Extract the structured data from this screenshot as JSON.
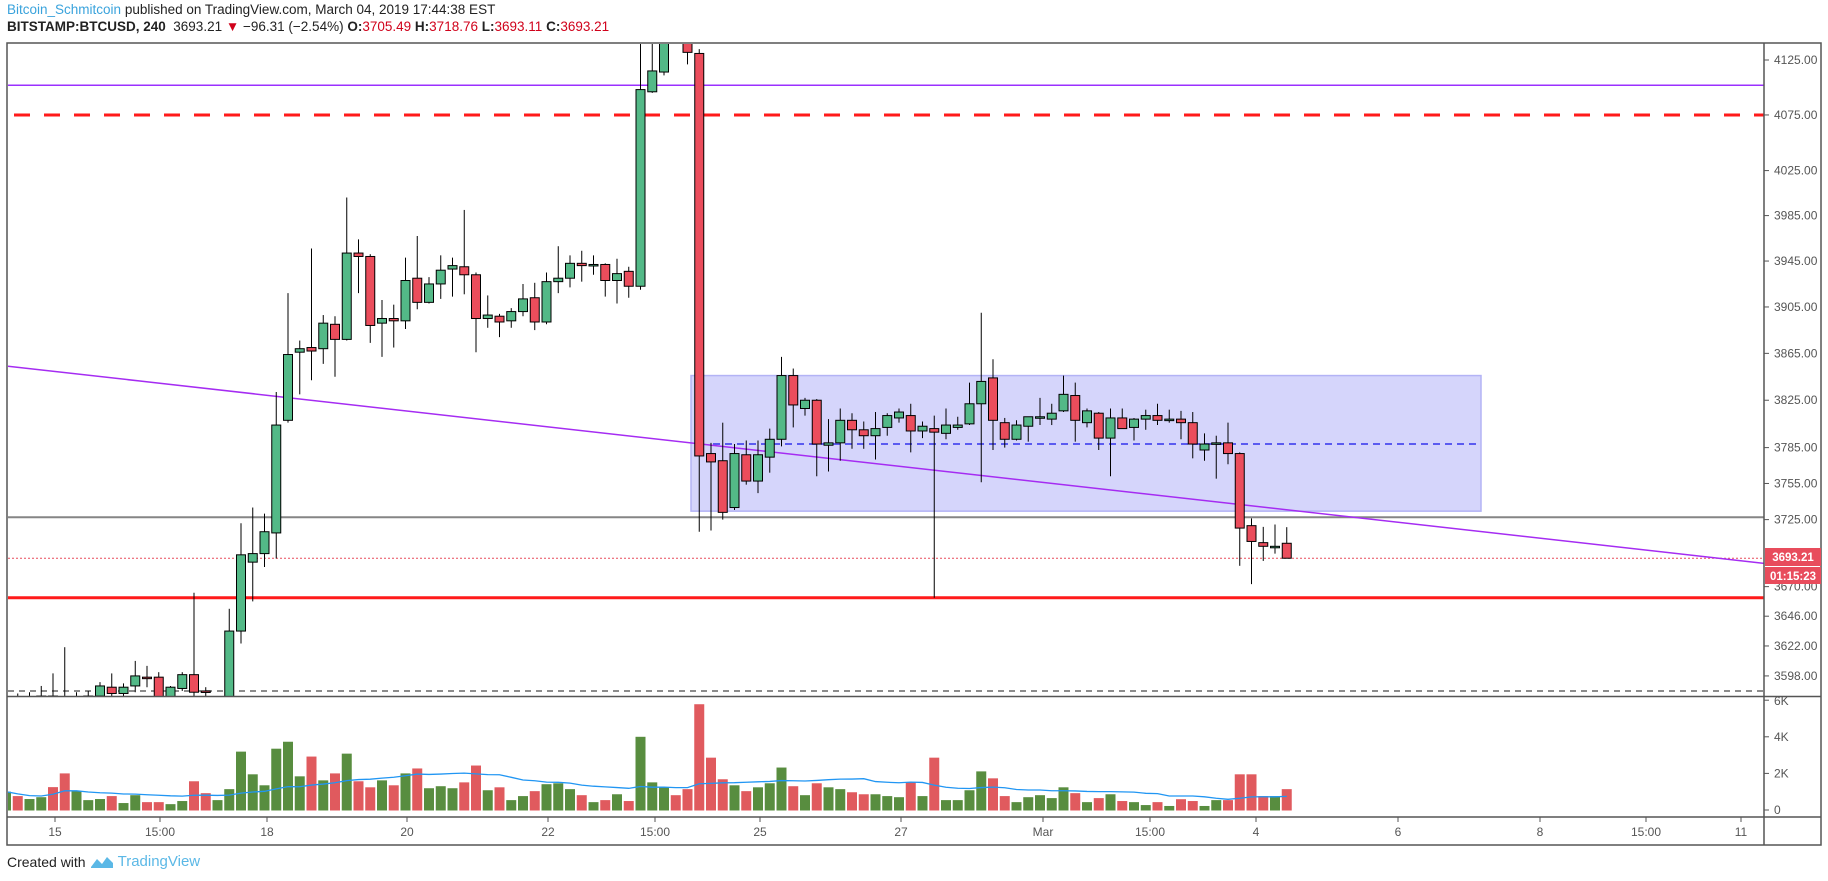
{
  "header": {
    "author": "Bitcoin_Schmitcoin",
    "published_text": "published on TradingView.com, March 04, 2019 17:44:38 EST",
    "symbol": "BITSTAMP:BTCUSD, 240",
    "last": "3693.21",
    "change_icon": "triangle-down-icon",
    "change_glyph": "▼",
    "change": "−96.31 (−2.54%)",
    "o_label": "O:",
    "o": "3705.49",
    "h_label": "H:",
    "h": "3718.76",
    "l_label": "L:",
    "l": "3693.11",
    "c_label": "C:",
    "c": "3693.21"
  },
  "price_badge": {
    "price": "3693.21",
    "countdown": "01:15:23"
  },
  "footer": {
    "created_with": "Created with",
    "brand": "TradingView"
  },
  "colors": {
    "up": "#53b987",
    "down": "#eb4d5c",
    "vol_up": "#588d3f",
    "vol_down": "#e05a5e",
    "vol_ma": "#2196f3",
    "badge": "#e84c5c",
    "trendline": "#a52cf2",
    "zone_fill": "#d5d5fb",
    "zone_mid": "#5b5bf0"
  },
  "chart_data": {
    "type": "candlestick",
    "interval": "240",
    "price_scale": "log",
    "ylim": [
      3586,
      4141
    ],
    "y_ticks": [
      4125,
      4075,
      4025,
      3985,
      3945,
      3905,
      3865,
      3825,
      3785,
      3755,
      3725,
      3670,
      3646,
      3622,
      3598
    ],
    "y_tick_labels": [
      "4125.00",
      "4075.00",
      "4025.00",
      "3985.00",
      "3945.00",
      "3905.00",
      "3865.00",
      "3825.00",
      "3785.00",
      "3755.00",
      "3725.00",
      "3670.00",
      "3646.00",
      "3622.00",
      "3598.00"
    ],
    "x_tick_labels": [
      "15",
      "15:00",
      "18",
      "20",
      "22",
      "15:00",
      "25",
      "27",
      "Mar",
      "15:00",
      "4",
      "6",
      "8",
      "15:00",
      "11"
    ],
    "ohlc": [
      [
        3575,
        3582,
        3565,
        3578
      ],
      [
        3578,
        3584,
        3566,
        3571
      ],
      [
        3571,
        3585,
        3567,
        3576
      ],
      [
        3576,
        3590,
        3570,
        3582
      ],
      [
        3582,
        3600,
        3570,
        3575
      ],
      [
        3575,
        3621,
        3565,
        3570
      ],
      [
        3570,
        3585,
        3562,
        3578
      ],
      [
        3578,
        3586,
        3570,
        3582
      ],
      [
        3582,
        3593,
        3575,
        3590
      ],
      [
        3589,
        3600,
        3580,
        3584
      ],
      [
        3584,
        3592,
        3582,
        3589
      ],
      [
        3590,
        3610,
        3585,
        3598
      ],
      [
        3597,
        3606,
        3589,
        3596
      ],
      [
        3597,
        3601,
        3575,
        3580
      ],
      [
        3578,
        3590,
        3575,
        3589
      ],
      [
        3588,
        3601,
        3586,
        3599
      ],
      [
        3599,
        3665,
        3580,
        3585
      ],
      [
        3586,
        3589,
        3570,
        3585
      ],
      [
        3572,
        3582,
        3562,
        3578
      ],
      [
        3575,
        3652,
        3570,
        3634
      ],
      [
        3634,
        3722,
        3624,
        3696
      ],
      [
        3690,
        3735,
        3658,
        3697
      ],
      [
        3697,
        3730,
        3686,
        3715
      ],
      [
        3714,
        3832,
        3693,
        3804
      ],
      [
        3808,
        3917,
        3806,
        3864
      ],
      [
        3866,
        3876,
        3830,
        3869
      ],
      [
        3870,
        3956,
        3842,
        3867
      ],
      [
        3869,
        3898,
        3856,
        3891
      ],
      [
        3890,
        3897,
        3845,
        3877
      ],
      [
        3877,
        4001,
        3876,
        3952
      ],
      [
        3952,
        3964,
        3917,
        3949
      ],
      [
        3949,
        3951,
        3874,
        3889
      ],
      [
        3891,
        3911,
        3862,
        3895
      ],
      [
        3895,
        3907,
        3870,
        3893
      ],
      [
        3893,
        3948,
        3886,
        3928
      ],
      [
        3930,
        3967,
        3903,
        3909
      ],
      [
        3909,
        3931,
        3908,
        3925
      ],
      [
        3925,
        3950,
        3912,
        3937
      ],
      [
        3938,
        3948,
        3914,
        3941
      ],
      [
        3940,
        3990,
        3916,
        3933
      ],
      [
        3933,
        3935,
        3866,
        3895
      ],
      [
        3895,
        3915,
        3887,
        3898
      ],
      [
        3897,
        3899,
        3879,
        3892
      ],
      [
        3893,
        3904,
        3887,
        3901
      ],
      [
        3901,
        3925,
        3897,
        3912
      ],
      [
        3913,
        3926,
        3885,
        3892
      ],
      [
        3892,
        3935,
        3890,
        3927
      ],
      [
        3927,
        3958,
        3917,
        3930
      ],
      [
        3930,
        3950,
        3922,
        3943
      ],
      [
        3943,
        3954,
        3927,
        3941
      ],
      [
        3942,
        3950,
        3933,
        3942
      ],
      [
        3942,
        3943,
        3914,
        3928
      ],
      [
        3928,
        3947,
        3908,
        3934
      ],
      [
        3936,
        3940,
        3913,
        3923
      ],
      [
        3923,
        4141,
        3920,
        4098
      ],
      [
        4096,
        4141,
        4095,
        4115
      ],
      [
        4114,
        4170,
        4111,
        4165
      ],
      [
        4165,
        4185,
        4148,
        4155
      ],
      [
        4155,
        4170,
        4121,
        4132
      ],
      [
        4131,
        4135,
        3715,
        3778
      ],
      [
        3780,
        3789,
        3716,
        3773
      ],
      [
        3774,
        3806,
        3725,
        3731
      ],
      [
        3735,
        3788,
        3733,
        3780
      ],
      [
        3779,
        3791,
        3754,
        3757
      ],
      [
        3757,
        3791,
        3747,
        3779
      ],
      [
        3777,
        3801,
        3764,
        3792
      ],
      [
        3792,
        3862,
        3786,
        3846
      ],
      [
        3846,
        3852,
        3802,
        3821
      ],
      [
        3818,
        3827,
        3812,
        3825
      ],
      [
        3825,
        3826,
        3761,
        3788
      ],
      [
        3787,
        3809,
        3765,
        3789
      ],
      [
        3789,
        3818,
        3774,
        3808
      ],
      [
        3808,
        3814,
        3784,
        3800
      ],
      [
        3800,
        3807,
        3784,
        3795
      ],
      [
        3795,
        3815,
        3775,
        3801
      ],
      [
        3802,
        3814,
        3795,
        3812
      ],
      [
        3810,
        3818,
        3806,
        3815
      ],
      [
        3812,
        3822,
        3781,
        3799
      ],
      [
        3799,
        3807,
        3793,
        3803
      ],
      [
        3801,
        3812,
        3661,
        3798
      ],
      [
        3797,
        3818,
        3792,
        3804
      ],
      [
        3802,
        3811,
        3800,
        3804
      ],
      [
        3805,
        3840,
        3804,
        3822
      ],
      [
        3822,
        3900,
        3756,
        3841
      ],
      [
        3844,
        3860,
        3783,
        3808
      ],
      [
        3806,
        3810,
        3785,
        3792
      ],
      [
        3792,
        3808,
        3791,
        3804
      ],
      [
        3803,
        3811,
        3790,
        3811
      ],
      [
        3811,
        3827,
        3804,
        3811
      ],
      [
        3809,
        3822,
        3804,
        3814
      ],
      [
        3816,
        3846,
        3815,
        3830
      ],
      [
        3829,
        3840,
        3790,
        3808
      ],
      [
        3806,
        3818,
        3802,
        3816
      ],
      [
        3814,
        3815,
        3783,
        3793
      ],
      [
        3793,
        3818,
        3761,
        3810
      ],
      [
        3810,
        3818,
        3802,
        3801
      ],
      [
        3802,
        3810,
        3791,
        3809
      ],
      [
        3809,
        3817,
        3800,
        3812
      ],
      [
        3812,
        3822,
        3804,
        3808
      ],
      [
        3809,
        3817,
        3806,
        3809
      ],
      [
        3809,
        3816,
        3792,
        3806
      ],
      [
        3806,
        3815,
        3776,
        3788
      ],
      [
        3783,
        3797,
        3774,
        3788
      ],
      [
        3788,
        3795,
        3759,
        3789
      ],
      [
        3789,
        3806,
        3771,
        3780
      ],
      [
        3780,
        3781,
        3687,
        3718
      ],
      [
        3720,
        3726,
        3672,
        3707
      ],
      [
        3706,
        3719,
        3691,
        3703
      ],
      [
        3703,
        3721,
        3697,
        3703
      ],
      [
        3705.49,
        3718.76,
        3693.11,
        3693.21
      ]
    ],
    "volume_k": [
      1.0,
      0.76,
      0.6,
      0.7,
      1.25,
      2.0,
      1.03,
      0.54,
      0.6,
      0.76,
      0.38,
      0.81,
      0.43,
      0.43,
      0.32,
      0.49,
      1.57,
      0.92,
      0.54,
      1.14,
      3.19,
      1.95,
      1.35,
      3.35,
      3.73,
      1.84,
      2.92,
      1.62,
      2.0,
      3.08,
      1.57,
      1.24,
      1.62,
      1.35,
      2.0,
      2.27,
      1.19,
      1.3,
      1.19,
      1.51,
      2.43,
      1.08,
      1.24,
      0.54,
      0.76,
      1.03,
      1.41,
      1.46,
      1.14,
      0.81,
      0.43,
      0.54,
      0.86,
      0.49,
      4.0,
      1.51,
      1.24,
      0.81,
      1.14,
      5.78,
      2.86,
      1.68,
      1.35,
      1.03,
      1.24,
      1.46,
      2.32,
      1.3,
      0.81,
      1.46,
      1.24,
      1.14,
      0.97,
      0.86,
      0.86,
      0.76,
      0.7,
      1.53,
      0.76,
      2.86,
      0.54,
      0.54,
      1.08,
      2.11,
      1.73,
      0.76,
      0.43,
      0.7,
      0.81,
      0.65,
      1.24,
      0.92,
      0.43,
      0.65,
      0.86,
      0.49,
      0.43,
      0.27,
      0.43,
      0.22,
      0.59,
      0.49,
      0.22,
      0.54,
      0.54,
      1.95,
      1.95,
      0.76,
      0.76,
      1.14
    ],
    "volume_ticks": [
      0,
      2,
      4,
      6
    ],
    "volume_tick_labels": [
      "0",
      "2K",
      "4K",
      "6K"
    ],
    "volume_ma": true,
    "drawings": {
      "resistance_line_purple": 4102,
      "resistance_dashed_red": 4075,
      "range_zone": {
        "top": 3846,
        "bottom": 3732,
        "mid": 3788
      },
      "support_gray": 3727,
      "support_red": 3661,
      "low_dashed_gray": 3586,
      "current_price_line": 3693.21,
      "trendline": {
        "start_price": 3854,
        "end_price": 3689
      }
    }
  }
}
